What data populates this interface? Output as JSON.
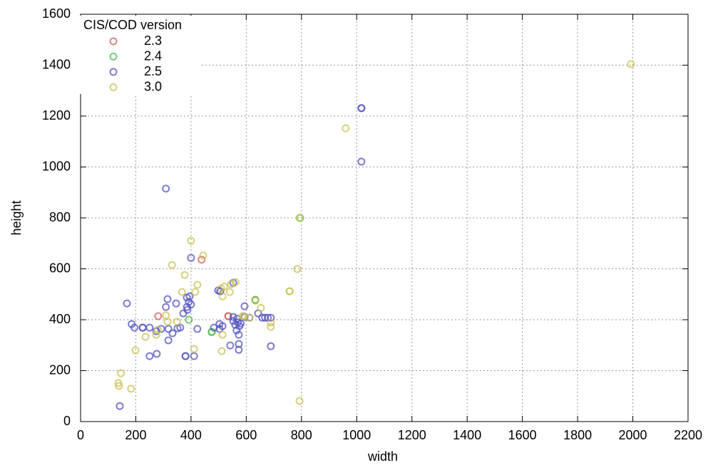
{
  "chart_data": {
    "type": "scatter",
    "xlabel": "width",
    "ylabel": "height",
    "legend_title": "CIS/COD version",
    "legend": "upper left",
    "grid": true,
    "xlim": [
      0,
      2200
    ],
    "ylim": [
      0,
      1600
    ],
    "xticks": [
      0,
      200,
      400,
      600,
      800,
      1000,
      1200,
      1400,
      1600,
      1800,
      2000,
      2200
    ],
    "yticks": [
      0,
      200,
      400,
      600,
      800,
      1000,
      1200,
      1400,
      1600
    ],
    "series": [
      {
        "name": "2.3",
        "color": "#d05a5a",
        "x": [
          281,
          438,
          535,
          535
        ],
        "values": [
          414,
          636,
          414,
          414
        ]
      },
      {
        "name": "2.4",
        "color": "#44b844",
        "x": [
          392,
          475,
          475,
          633,
          633,
          795
        ],
        "values": [
          400,
          352,
          352,
          478,
          478,
          800
        ]
      },
      {
        "name": "2.5",
        "color": "#5050c0",
        "x": [
          1017,
          1017,
          1017,
          309,
          168,
          142,
          185,
          195,
          225,
          225,
          250,
          274,
          292,
          318,
          250,
          276,
          318,
          333,
          351,
          361,
          380,
          380,
          411,
          423,
          400,
          309,
          315,
          385,
          387,
          395,
          400,
          372,
          346,
          385,
          392,
          498,
          503,
          503,
          514,
          483,
          542,
          553,
          553,
          560,
          565,
          567,
          570,
          573,
          573,
          573,
          575,
          580,
          594,
          594,
          612,
          643,
          658,
          668,
          678,
          689,
          689,
          553,
          506,
          506
        ],
        "values": [
          1231,
          1231,
          1021,
          915,
          464,
          61,
          383,
          369,
          369,
          369,
          369,
          355,
          364,
          364,
          257,
          266,
          319,
          347,
          366,
          369,
          257,
          257,
          257,
          364,
          643,
          450,
          481,
          487,
          439,
          492,
          460,
          425,
          464,
          450,
          470,
          515,
          383,
          364,
          375,
          369,
          299,
          411,
          395,
          380,
          358,
          404,
          390,
          341,
          305,
          282,
          375,
          385,
          453,
          411,
          408,
          425,
          408,
          408,
          408,
          408,
          296,
          545,
          512,
          512
        ]
      },
      {
        "name": "3.0",
        "color": "#c8c050",
        "x": [
          1993,
          960,
          793,
          785,
          793,
          400,
          444,
          331,
          377,
          423,
          415,
          367,
          309,
          315,
          349,
          235,
          274,
          280,
          199,
          411,
          146,
          137,
          139,
          183,
          509,
          514,
          520,
          540,
          545,
          561,
          511,
          514,
          586,
          612,
          633,
          653,
          689,
          689,
          757,
          757,
          592
        ],
        "values": [
          1404,
          1152,
          800,
          599,
          81,
          710,
          652,
          615,
          576,
          537,
          509,
          509,
          417,
          392,
          392,
          333,
          341,
          360,
          280,
          285,
          190,
          151,
          140,
          129,
          523,
          492,
          530,
          509,
          540,
          548,
          277,
          341,
          414,
          408,
          475,
          447,
          389,
          372,
          512,
          512,
          414
        ]
      }
    ]
  }
}
